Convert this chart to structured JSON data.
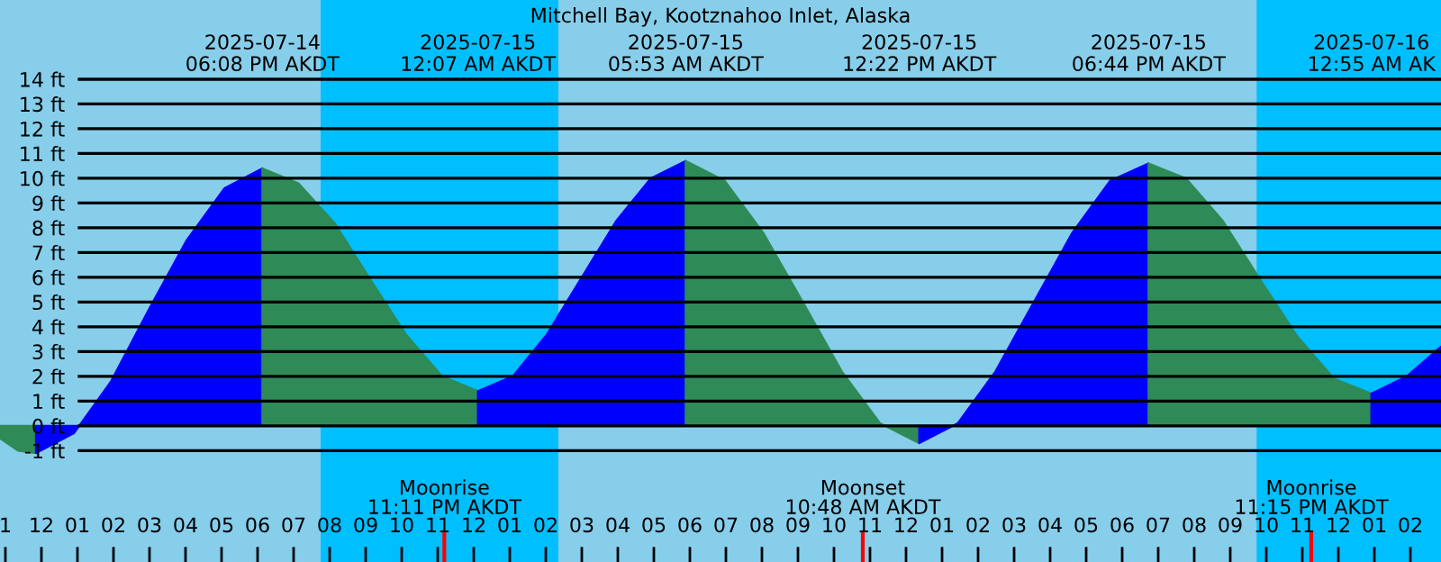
{
  "chart_data": {
    "type": "area",
    "title": "Mitchell Bay, Kootznahoo Inlet, Alaska",
    "series": [
      {
        "color": "#2e8b57",
        "x": [
          "2025-07-14T10:51",
          "2025-07-14T11:21",
          "2025-07-14T11:51"
        ],
        "values": [
          -0.5,
          -1.0,
          -1.1
        ]
      },
      {
        "color": "#0000ff",
        "x": [
          "2025-07-14T11:51",
          "2025-07-14T12:54",
          "2025-07-14T13:56",
          "2025-07-14T14:59",
          "2025-07-14T16:02",
          "2025-07-14T17:05",
          "2025-07-14T18:08"
        ],
        "values": [
          -1.1,
          -0.3,
          1.8,
          4.7,
          7.5,
          9.6,
          10.4
        ]
      },
      {
        "color": "#2e8b57",
        "x": [
          "2025-07-14T18:08",
          "2025-07-14T19:08",
          "2025-07-14T20:08",
          "2025-07-14T21:08",
          "2025-07-14T22:07",
          "2025-07-14T23:07",
          "2025-07-15T00:07"
        ],
        "values": [
          10.4,
          9.8,
          8.2,
          5.9,
          3.7,
          2.0,
          1.4
        ]
      },
      {
        "color": "#0000ff",
        "x": [
          "2025-07-15T00:07",
          "2025-07-15T01:05",
          "2025-07-15T02:02",
          "2025-07-15T03:00",
          "2025-07-15T03:58",
          "2025-07-15T04:55",
          "2025-07-15T05:53"
        ],
        "values": [
          1.4,
          2.0,
          3.7,
          6.0,
          8.3,
          10.0,
          10.7
        ]
      },
      {
        "color": "#2e8b57",
        "x": [
          "2025-07-15T05:53",
          "2025-07-15T06:58",
          "2025-07-15T08:02",
          "2025-07-15T09:08",
          "2025-07-15T10:13",
          "2025-07-15T11:17",
          "2025-07-15T12:22"
        ],
        "values": [
          10.7,
          9.9,
          7.8,
          5.0,
          2.2,
          0.1,
          -0.7
        ]
      },
      {
        "color": "#0000ff",
        "x": [
          "2025-07-15T12:22",
          "2025-07-15T13:26",
          "2025-07-15T14:29",
          "2025-07-15T15:33",
          "2025-07-15T16:37",
          "2025-07-15T17:40",
          "2025-07-15T18:44"
        ],
        "values": [
          -0.7,
          0.1,
          2.2,
          5.0,
          7.8,
          9.9,
          10.6
        ]
      },
      {
        "color": "#2e8b57",
        "x": [
          "2025-07-15T18:44",
          "2025-07-15T19:46",
          "2025-07-15T20:47",
          "2025-07-15T21:50",
          "2025-07-15T22:52",
          "2025-07-15T23:53",
          "2025-07-16T00:55"
        ],
        "values": [
          10.6,
          10.0,
          8.3,
          5.9,
          3.6,
          1.9,
          1.3
        ]
      },
      {
        "color": "#0000ff",
        "x": [
          "2025-07-16T00:55",
          "2025-07-16T01:54",
          "2025-07-16T02:51"
        ],
        "values": [
          1.3,
          2.0,
          3.2
        ]
      }
    ],
    "xlim": [
      "2025-07-14T10:51",
      "2025-07-16T02:51"
    ],
    "xticks": [
      {
        "value": "2025-07-14T11:00",
        "label": "1"
      },
      {
        "value": "2025-07-14T12:00",
        "label": "12"
      },
      {
        "value": "2025-07-14T13:00",
        "label": "01"
      },
      {
        "value": "2025-07-14T14:00",
        "label": "02"
      },
      {
        "value": "2025-07-14T15:00",
        "label": "03"
      },
      {
        "value": "2025-07-14T16:00",
        "label": "04"
      },
      {
        "value": "2025-07-14T17:00",
        "label": "05"
      },
      {
        "value": "2025-07-14T18:00",
        "label": "06"
      },
      {
        "value": "2025-07-14T19:00",
        "label": "07"
      },
      {
        "value": "2025-07-14T20:00",
        "label": "08"
      },
      {
        "value": "2025-07-14T21:00",
        "label": "09"
      },
      {
        "value": "2025-07-14T22:00",
        "label": "10"
      },
      {
        "value": "2025-07-14T23:00",
        "label": "11"
      },
      {
        "value": "2025-07-15T00:00",
        "label": "12"
      },
      {
        "value": "2025-07-15T01:00",
        "label": "01"
      },
      {
        "value": "2025-07-15T02:00",
        "label": "02"
      },
      {
        "value": "2025-07-15T03:00",
        "label": "03"
      },
      {
        "value": "2025-07-15T04:00",
        "label": "04"
      },
      {
        "value": "2025-07-15T05:00",
        "label": "05"
      },
      {
        "value": "2025-07-15T06:00",
        "label": "06"
      },
      {
        "value": "2025-07-15T07:00",
        "label": "07"
      },
      {
        "value": "2025-07-15T08:00",
        "label": "08"
      },
      {
        "value": "2025-07-15T09:00",
        "label": "09"
      },
      {
        "value": "2025-07-15T10:00",
        "label": "10"
      },
      {
        "value": "2025-07-15T11:00",
        "label": "11"
      },
      {
        "value": "2025-07-15T12:00",
        "label": "12"
      },
      {
        "value": "2025-07-15T13:00",
        "label": "01"
      },
      {
        "value": "2025-07-15T14:00",
        "label": "02"
      },
      {
        "value": "2025-07-15T15:00",
        "label": "03"
      },
      {
        "value": "2025-07-15T16:00",
        "label": "04"
      },
      {
        "value": "2025-07-15T17:00",
        "label": "05"
      },
      {
        "value": "2025-07-15T18:00",
        "label": "06"
      },
      {
        "value": "2025-07-15T19:00",
        "label": "07"
      },
      {
        "value": "2025-07-15T20:00",
        "label": "08"
      },
      {
        "value": "2025-07-15T21:00",
        "label": "09"
      },
      {
        "value": "2025-07-15T22:00",
        "label": "10"
      },
      {
        "value": "2025-07-15T23:00",
        "label": "11"
      },
      {
        "value": "2025-07-16T00:00",
        "label": "12"
      },
      {
        "value": "2025-07-16T01:00",
        "label": "01"
      },
      {
        "value": "2025-07-16T02:00",
        "label": "02"
      }
    ],
    "x2lim": [
      "2025-07-14T10:51",
      "2025-07-16T02:51"
    ],
    "x2ticks": [
      {
        "value": "2025-07-14T18:08",
        "label": "2025-07-14\n06:08 PM AKDT"
      },
      {
        "value": "2025-07-15T00:07",
        "label": "2025-07-15\n12:07 AM AKDT"
      },
      {
        "value": "2025-07-15T05:53",
        "label": "2025-07-15\n05:53 AM AKDT"
      },
      {
        "value": "2025-07-15T12:22",
        "label": "2025-07-15\n12:22 PM AKDT"
      },
      {
        "value": "2025-07-15T18:44",
        "label": "2025-07-15\n06:44 PM AKDT"
      },
      {
        "value": "2025-07-16T00:55",
        "label": "2025-07-16\n12:55 AM AK"
      }
    ],
    "ylim": [
      -5.5,
      17.2
    ],
    "yticks": [
      {
        "value": -1,
        "label": "-1 ft"
      },
      {
        "value": 0,
        "label": "0 ft"
      },
      {
        "value": 1,
        "label": "1 ft"
      },
      {
        "value": 2,
        "label": "2 ft"
      },
      {
        "value": 3,
        "label": "3 ft"
      },
      {
        "value": 4,
        "label": "4 ft"
      },
      {
        "value": 5,
        "label": "5 ft"
      },
      {
        "value": 6,
        "label": "6 ft"
      },
      {
        "value": 7,
        "label": "7 ft"
      },
      {
        "value": 8,
        "label": "8 ft"
      },
      {
        "value": 9,
        "label": "9 ft"
      },
      {
        "value": 10,
        "label": "10 ft"
      },
      {
        "value": 11,
        "label": "11 ft"
      },
      {
        "value": 12,
        "label": "12 ft"
      },
      {
        "value": 13,
        "label": "13 ft"
      },
      {
        "value": 14,
        "label": "14 ft"
      }
    ],
    "grid": "y",
    "bands": [
      {
        "axis": "x",
        "from": "2025-07-14T19:45",
        "to": "2025-07-15T02:21",
        "color": "#00bfff"
      },
      {
        "axis": "x",
        "from": "2025-07-15T21:44",
        "to": "2025-07-16T02:51",
        "color": "#00bfff"
      }
    ],
    "ref_lines": [
      {
        "axis": "x",
        "value": "2025-07-14T23:11",
        "label": "Moonrise\n11:11 PM AKDT",
        "color": "#ff0000"
      },
      {
        "axis": "x",
        "value": "2025-07-15T10:48",
        "label": "Moonset\n10:48 AM AKDT",
        "color": "#ff0000"
      },
      {
        "axis": "x",
        "value": "2025-07-15T23:15",
        "label": "Moonrise\n11:15 PM AKDT",
        "color": "#ff0000"
      }
    ]
  }
}
